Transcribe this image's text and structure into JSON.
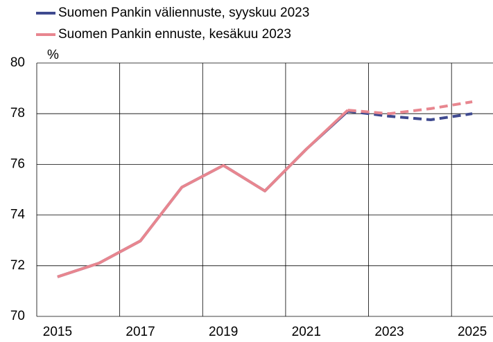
{
  "chart_data": {
    "type": "line",
    "categories": [
      "2015",
      null,
      "2017",
      null,
      "2019",
      null,
      "2021",
      null,
      "2023",
      null,
      "2025"
    ],
    "series": [
      {
        "name": "Suomen Pankin väliennuste, syyskuu 2023",
        "color": "#3f4a8f",
        "values": [
          71.56,
          72.1,
          72.98,
          75.1,
          75.96,
          74.95,
          76.6,
          78.1,
          77.9,
          77.76,
          78.0
        ]
      },
      {
        "name": "Suomen Pankin ennuste, kesäkuu 2023",
        "color": "#e8868f",
        "values": [
          71.56,
          72.1,
          72.98,
          75.1,
          75.96,
          74.95,
          76.6,
          78.14,
          78.0,
          78.2,
          78.47
        ]
      }
    ],
    "dash_from": 7,
    "y_unit_label": "%",
    "ylim": [
      70,
      80
    ],
    "yticks": [
      70,
      72,
      74,
      76,
      78,
      80
    ],
    "grid": true
  }
}
